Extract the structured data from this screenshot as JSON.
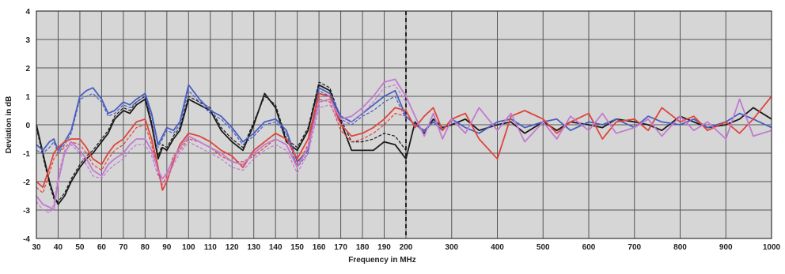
{
  "chart_data": {
    "type": "line",
    "xlabel": "Frequency in MHz",
    "ylabel": "Deviation in dB",
    "ylim": [
      -4,
      4
    ],
    "yticks": [
      4,
      3,
      2,
      1,
      0,
      -1,
      -2,
      -3,
      -4
    ],
    "xticks_low": [
      30,
      40,
      50,
      60,
      70,
      80,
      90,
      100,
      110,
      120,
      130,
      140,
      150,
      160,
      170,
      180,
      190,
      200
    ],
    "xticks_high": [
      200,
      300,
      400,
      500,
      600,
      700,
      800,
      900,
      1000
    ],
    "x_segments": [
      {
        "range": [
          30,
          200
        ],
        "scale": "linear",
        "step": 10
      },
      {
        "range": [
          200,
          1000
        ],
        "scale": "linear",
        "step": 100
      }
    ],
    "divider_at": 200,
    "grid": true,
    "background": "#d6d6d6",
    "series": [
      {
        "color": "#1a1a1a",
        "dashed": false,
        "x": [
          30,
          33,
          36,
          38,
          40,
          43,
          46,
          50,
          53,
          56,
          60,
          63,
          66,
          70,
          73,
          76,
          80,
          83,
          86,
          88,
          90,
          93,
          96,
          100,
          105,
          110,
          115,
          120,
          125,
          130,
          135,
          140,
          145,
          150,
          155,
          160,
          165,
          170,
          175,
          180,
          185,
          190,
          195,
          200,
          220,
          240,
          260,
          280,
          300,
          330,
          360,
          400,
          430,
          460,
          500,
          530,
          560,
          600,
          630,
          660,
          700,
          730,
          760,
          800,
          830,
          860,
          900,
          930,
          960,
          1000
        ],
        "y": [
          0,
          -1,
          -2,
          -2.5,
          -2.8,
          -2.5,
          -2.0,
          -1.5,
          -1.2,
          -1.0,
          -0.6,
          -0.3,
          0.2,
          0.5,
          0.4,
          0.7,
          0.9,
          0.0,
          -1.2,
          -0.8,
          -0.9,
          -0.5,
          -0.2,
          0.9,
          0.7,
          0.5,
          -0.2,
          -0.6,
          -0.9,
          0.0,
          1.1,
          0.6,
          -0.6,
          -0.9,
          -0.2,
          1.4,
          1.2,
          0.1,
          -0.9,
          -0.9,
          -0.9,
          -0.6,
          -0.7,
          -1.2,
          0.1,
          -0.3,
          0.2,
          -0.1,
          0.0,
          0.2,
          -0.2,
          0.0,
          0.1,
          -0.3,
          0.1,
          -0.2,
          0.1,
          0.0,
          -0.1,
          0.2,
          0.1,
          0.0,
          -0.2,
          0.3,
          0.1,
          -0.1,
          0.0,
          0.2,
          0.6,
          0.2
        ]
      },
      {
        "color": "#1a1a1a",
        "dashed": true,
        "x": [
          30,
          33,
          36,
          38,
          40,
          43,
          46,
          50,
          53,
          56,
          60,
          63,
          66,
          70,
          73,
          76,
          80,
          83,
          86,
          88,
          90,
          93,
          96,
          100,
          105,
          110,
          115,
          120,
          125,
          130,
          135,
          140,
          145,
          150,
          155,
          160,
          165,
          170,
          175,
          180,
          185,
          190,
          195,
          200
        ],
        "y": [
          -0.1,
          -1.1,
          -2.1,
          -2.6,
          -2.7,
          -2.4,
          -1.9,
          -1.4,
          -1.1,
          -0.9,
          -0.5,
          -0.2,
          0.3,
          0.6,
          0.5,
          0.8,
          1.0,
          0.1,
          -1.1,
          -0.7,
          -0.8,
          -0.4,
          -0.1,
          1.0,
          0.8,
          0.6,
          -0.1,
          -0.5,
          -0.8,
          0.1,
          1.0,
          0.7,
          -0.5,
          -0.8,
          -0.1,
          1.5,
          1.3,
          0.2,
          -0.6,
          -0.6,
          -0.5,
          -0.3,
          -0.4,
          -0.9
        ]
      },
      {
        "color": "#4a5fc0",
        "dashed": false,
        "x": [
          30,
          33,
          36,
          38,
          40,
          43,
          46,
          50,
          53,
          56,
          60,
          63,
          66,
          70,
          73,
          76,
          80,
          83,
          86,
          88,
          90,
          93,
          96,
          100,
          105,
          110,
          115,
          120,
          125,
          130,
          135,
          140,
          145,
          150,
          155,
          160,
          165,
          170,
          175,
          180,
          185,
          190,
          195,
          200,
          220,
          240,
          260,
          280,
          300,
          330,
          360,
          400,
          430,
          460,
          500,
          530,
          560,
          600,
          630,
          660,
          700,
          730,
          760,
          800,
          830,
          860,
          900,
          930,
          960,
          1000
        ],
        "y": [
          -0.7,
          -0.9,
          -0.6,
          -0.5,
          -0.9,
          -0.6,
          -0.2,
          1.0,
          1.2,
          1.3,
          0.9,
          0.4,
          0.5,
          0.8,
          0.7,
          0.9,
          1.1,
          0.4,
          -0.7,
          -0.4,
          -0.1,
          -0.2,
          0.1,
          1.4,
          0.9,
          0.5,
          0.3,
          -0.1,
          -0.6,
          -0.3,
          0.1,
          0.2,
          -0.2,
          -1.3,
          -0.9,
          1.3,
          1.1,
          0.3,
          0.1,
          0.4,
          0.7,
          1.0,
          1.2,
          0.3,
          0.0,
          -0.2,
          0.1,
          -0.2,
          0.2,
          -0.1,
          -0.3,
          0.1,
          0.2,
          -0.1,
          0.1,
          0.2,
          -0.2,
          0.1,
          0.0,
          0.2,
          -0.1,
          0.3,
          0.1,
          0.0,
          0.2,
          -0.1,
          0.1,
          0.4,
          0.2,
          -0.1
        ]
      },
      {
        "color": "#4a5fc0",
        "dashed": true,
        "x": [
          30,
          33,
          36,
          38,
          40,
          43,
          46,
          50,
          53,
          56,
          60,
          63,
          66,
          70,
          73,
          76,
          80,
          83,
          86,
          88,
          90,
          93,
          96,
          100,
          105,
          110,
          115,
          120,
          125,
          130,
          135,
          140,
          145,
          150,
          155,
          160,
          165,
          170,
          175,
          180,
          185,
          190,
          195,
          200
        ],
        "y": [
          -0.9,
          -1.0,
          -0.8,
          -0.6,
          -1.0,
          -0.7,
          -0.3,
          0.9,
          1.0,
          1.1,
          0.8,
          0.3,
          0.4,
          0.7,
          0.6,
          0.8,
          1.0,
          0.3,
          -0.8,
          -0.5,
          -0.2,
          -0.3,
          0.0,
          1.2,
          0.8,
          0.4,
          0.2,
          -0.2,
          -0.7,
          -0.4,
          0.0,
          0.1,
          -0.3,
          -1.5,
          -1.0,
          1.2,
          1.0,
          0.2,
          0.0,
          0.3,
          0.5,
          0.8,
          1.0,
          0.2
        ]
      },
      {
        "color": "#e0443c",
        "dashed": false,
        "x": [
          30,
          33,
          36,
          38,
          40,
          43,
          46,
          50,
          53,
          56,
          60,
          63,
          66,
          70,
          73,
          76,
          80,
          83,
          86,
          88,
          90,
          93,
          96,
          100,
          105,
          110,
          115,
          120,
          125,
          130,
          135,
          140,
          145,
          150,
          155,
          160,
          165,
          170,
          175,
          180,
          185,
          190,
          195,
          200,
          220,
          240,
          260,
          280,
          300,
          330,
          360,
          400,
          430,
          460,
          500,
          530,
          560,
          600,
          630,
          660,
          700,
          730,
          760,
          800,
          830,
          860,
          900,
          930,
          960,
          1000
        ],
        "y": [
          -2.0,
          -2.2,
          -1.5,
          -1.0,
          -0.8,
          -0.6,
          -0.5,
          -0.5,
          -0.8,
          -1.2,
          -1.4,
          -1.0,
          -0.7,
          -0.5,
          -0.2,
          0.1,
          0.2,
          -0.5,
          -1.5,
          -2.3,
          -2.0,
          -1.3,
          -0.7,
          -0.3,
          -0.4,
          -0.6,
          -0.9,
          -1.1,
          -1.5,
          -0.9,
          -0.6,
          -0.3,
          -0.5,
          -1.2,
          -0.5,
          1.1,
          1.0,
          0.0,
          -0.4,
          -0.3,
          -0.1,
          0.2,
          0.6,
          0.5,
          -0.1,
          0.3,
          0.6,
          -0.2,
          0.2,
          0.4,
          -0.5,
          -1.2,
          0.3,
          0.5,
          0.2,
          -0.3,
          0.1,
          0.4,
          -0.5,
          0.1,
          0.2,
          -0.2,
          0.6,
          0.1,
          0.3,
          -0.2,
          0.1,
          -0.3,
          0.2,
          1.0
        ]
      },
      {
        "color": "#e0443c",
        "dashed": true,
        "x": [
          30,
          33,
          36,
          38,
          40,
          43,
          46,
          50,
          53,
          56,
          60,
          63,
          66,
          70,
          73,
          76,
          80,
          83,
          86,
          88,
          90,
          93,
          96,
          100,
          105,
          110,
          115,
          120,
          125,
          130,
          135,
          140,
          145,
          150,
          155,
          160,
          165,
          170,
          175,
          180,
          185,
          190,
          195,
          200
        ],
        "y": [
          -2.2,
          -2.4,
          -1.7,
          -1.2,
          -1.0,
          -0.8,
          -0.6,
          -0.7,
          -1.0,
          -1.4,
          -1.6,
          -1.2,
          -0.9,
          -0.7,
          -0.4,
          -0.1,
          0.0,
          -0.7,
          -1.7,
          -2.1,
          -1.8,
          -1.1,
          -0.9,
          -0.5,
          -0.6,
          -0.8,
          -1.1,
          -1.3,
          -1.3,
          -1.1,
          -0.8,
          -0.5,
          -0.7,
          -1.4,
          -0.7,
          0.9,
          0.8,
          -0.2,
          -0.6,
          -0.5,
          -0.3,
          0.0,
          0.4,
          0.3
        ]
      },
      {
        "color": "#c27ad0",
        "dashed": false,
        "x": [
          30,
          33,
          36,
          38,
          40,
          43,
          46,
          50,
          53,
          56,
          60,
          63,
          66,
          70,
          73,
          76,
          80,
          83,
          86,
          88,
          90,
          93,
          96,
          100,
          105,
          110,
          115,
          120,
          125,
          130,
          135,
          140,
          145,
          150,
          155,
          160,
          165,
          170,
          175,
          180,
          185,
          190,
          195,
          200,
          220,
          240,
          260,
          280,
          300,
          330,
          360,
          400,
          430,
          460,
          500,
          530,
          560,
          600,
          630,
          660,
          700,
          730,
          760,
          800,
          830,
          860,
          900,
          930,
          960,
          1000
        ],
        "y": [
          -2.5,
          -2.8,
          -2.9,
          -3.0,
          -2.0,
          -1.0,
          -0.6,
          -0.9,
          -1.2,
          -1.6,
          -1.8,
          -1.4,
          -1.2,
          -1.0,
          -0.7,
          -0.5,
          -0.5,
          -0.9,
          -1.6,
          -1.9,
          -1.7,
          -1.2,
          -0.8,
          -0.4,
          -0.6,
          -0.8,
          -1.0,
          -1.3,
          -1.4,
          -1.0,
          -0.7,
          -0.5,
          -0.7,
          -1.5,
          -0.8,
          0.8,
          0.9,
          0.2,
          0.3,
          0.6,
          1.0,
          1.5,
          1.6,
          1.0,
          0.3,
          -0.4,
          0.4,
          -0.5,
          0.2,
          -0.3,
          0.6,
          -0.2,
          0.4,
          -0.6,
          0.1,
          -0.5,
          0.3,
          -0.2,
          0.4,
          -0.3,
          -0.1,
          0.2,
          -0.4,
          0.3,
          -0.2,
          0.1,
          -0.5,
          0.9,
          -0.4,
          -0.2
        ]
      },
      {
        "color": "#c27ad0",
        "dashed": true,
        "x": [
          30,
          33,
          36,
          38,
          40,
          43,
          46,
          50,
          53,
          56,
          60,
          63,
          66,
          70,
          73,
          76,
          80,
          83,
          86,
          88,
          90,
          93,
          96,
          100,
          105,
          110,
          115,
          120,
          125,
          130,
          135,
          140,
          145,
          150,
          155,
          160,
          165,
          170,
          175,
          180,
          185,
          190,
          195,
          200
        ],
        "y": [
          -2.7,
          -3.0,
          -3.1,
          -2.8,
          -1.8,
          -0.9,
          -0.7,
          -1.0,
          -1.4,
          -1.8,
          -1.9,
          -1.6,
          -1.4,
          -1.2,
          -0.9,
          -0.7,
          -0.7,
          -1.1,
          -1.8,
          -2.1,
          -1.9,
          -1.4,
          -1.0,
          -0.6,
          -0.8,
          -1.0,
          -1.2,
          -1.5,
          -1.6,
          -1.2,
          -0.9,
          -0.7,
          -0.9,
          -1.7,
          -1.0,
          0.6,
          0.7,
          0.0,
          0.1,
          0.4,
          0.8,
          1.3,
          1.4,
          0.8
        ]
      }
    ]
  }
}
